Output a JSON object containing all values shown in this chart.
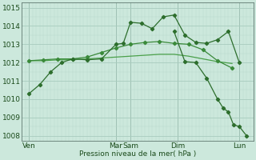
{
  "bg_color": "#cce8dc",
  "grid_color_major": "#a8ccbe",
  "grid_color_minor": "#b8d8ca",
  "line_color1": "#2d6e2d",
  "line_color2": "#3a8a3a",
  "line_color3": "#4aa04a",
  "xlabel": "Pression niveau de la mer( hPa )",
  "ylim": [
    1007.7,
    1015.3
  ],
  "yticks": [
    1008,
    1009,
    1010,
    1011,
    1012,
    1013,
    1014,
    1015
  ],
  "xlim": [
    0,
    32
  ],
  "day_labels": [
    "Ven",
    "Mar",
    "Sam",
    "Dim",
    "Lun"
  ],
  "day_x": [
    1,
    13,
    15,
    21.5,
    30
  ],
  "day_vlines": [
    1,
    13,
    15,
    21.5,
    30
  ],
  "s1_x": [
    1,
    2.5,
    4,
    5.5,
    7,
    9,
    11,
    13,
    14,
    15,
    16.5,
    18,
    19.5,
    21,
    22.5,
    24,
    25.5,
    27,
    28.5,
    30
  ],
  "s1_y": [
    1010.3,
    1010.8,
    1011.5,
    1012.0,
    1012.2,
    1012.15,
    1012.2,
    1013.0,
    1013.05,
    1014.2,
    1014.15,
    1013.85,
    1014.5,
    1014.6,
    1013.5,
    1013.1,
    1013.05,
    1013.25,
    1013.7,
    1012.0
  ],
  "s2_x": [
    1,
    3,
    5,
    7,
    9,
    11,
    13,
    15,
    17,
    19,
    21,
    23,
    25,
    27,
    29
  ],
  "s2_y": [
    1012.1,
    1012.15,
    1012.2,
    1012.2,
    1012.3,
    1012.55,
    1012.8,
    1013.0,
    1013.1,
    1013.15,
    1013.05,
    1013.0,
    1012.7,
    1012.1,
    1011.7
  ],
  "s3_x": [
    1,
    3,
    5,
    7,
    9,
    11,
    13,
    15,
    17,
    19,
    21,
    23,
    25,
    27,
    29
  ],
  "s3_y": [
    1012.1,
    1012.1,
    1012.15,
    1012.15,
    1012.2,
    1012.25,
    1012.3,
    1012.35,
    1012.4,
    1012.45,
    1012.45,
    1012.35,
    1012.2,
    1012.05,
    1011.95
  ],
  "s4_x": [
    21,
    22.5,
    24,
    25.5,
    27,
    27.8,
    28.5,
    29.2,
    30,
    31
  ],
  "s4_y": [
    1013.7,
    1012.05,
    1012.0,
    1011.15,
    1010.0,
    1009.5,
    1009.3,
    1008.6,
    1008.5,
    1008.0
  ]
}
